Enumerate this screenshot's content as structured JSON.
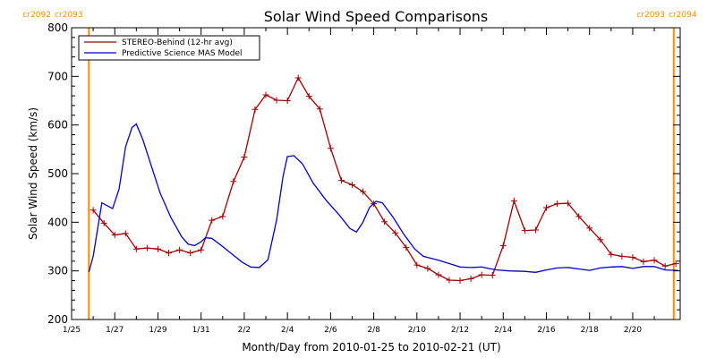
{
  "chart_data": {
    "type": "line",
    "title": "Solar Wind Speed Comparisons",
    "xlabel": "Month/Day from 2010-01-25 to 2010-02-21 (UT)",
    "ylabel": "Solar Wind Speed (km/s)",
    "x_range_days": [
      0,
      28.2
    ],
    "ylim": [
      200,
      800
    ],
    "y_ticks": [
      200,
      300,
      400,
      500,
      600,
      700,
      800
    ],
    "x_ticks": [
      {
        "d": 0,
        "label": "1/25"
      },
      {
        "d": 2,
        "label": "1/27"
      },
      {
        "d": 4,
        "label": "1/29"
      },
      {
        "d": 6,
        "label": "1/31"
      },
      {
        "d": 8,
        "label": "2/2"
      },
      {
        "d": 10,
        "label": "2/4"
      },
      {
        "d": 12,
        "label": "2/6"
      },
      {
        "d": 14,
        "label": "2/8"
      },
      {
        "d": 16,
        "label": "2/10"
      },
      {
        "d": 18,
        "label": "2/12"
      },
      {
        "d": 20,
        "label": "2/14"
      },
      {
        "d": 22,
        "label": "2/16"
      },
      {
        "d": 24,
        "label": "2/18"
      },
      {
        "d": 26,
        "label": "2/20"
      }
    ],
    "carrington": [
      {
        "d": 0.8,
        "left_label": "cr2092",
        "right_label": "cr2093",
        "side": "left"
      },
      {
        "d": 27.9,
        "left_label": "cr2093",
        "right_label": "cr2094",
        "side": "right"
      }
    ],
    "legend_position": "top-left",
    "series": [
      {
        "name": "STEREO-Behind (12-hr avg)",
        "color": "#a00000",
        "marker": "plus",
        "points": [
          [
            1.0,
            425
          ],
          [
            1.5,
            398
          ],
          [
            2.0,
            374
          ],
          [
            2.5,
            377
          ],
          [
            3.0,
            345
          ],
          [
            3.5,
            347
          ],
          [
            4.0,
            345
          ],
          [
            4.5,
            337
          ],
          [
            5.0,
            343
          ],
          [
            5.5,
            337
          ],
          [
            6.0,
            343
          ],
          [
            6.5,
            404
          ],
          [
            7.0,
            412
          ],
          [
            7.5,
            484
          ],
          [
            8.0,
            534
          ],
          [
            8.5,
            632
          ],
          [
            9.0,
            662
          ],
          [
            9.5,
            651
          ],
          [
            10.0,
            650
          ],
          [
            10.5,
            697
          ],
          [
            11.0,
            659
          ],
          [
            11.5,
            633
          ],
          [
            12.0,
            552
          ],
          [
            12.5,
            486
          ],
          [
            13.0,
            477
          ],
          [
            13.5,
            463
          ],
          [
            14.0,
            438
          ],
          [
            14.5,
            401
          ],
          [
            15.0,
            378
          ],
          [
            15.5,
            348
          ],
          [
            16.0,
            312
          ],
          [
            16.5,
            305
          ],
          [
            17.0,
            292
          ],
          [
            17.5,
            281
          ],
          [
            18.0,
            280
          ],
          [
            18.5,
            284
          ],
          [
            19.0,
            292
          ],
          [
            19.5,
            291
          ],
          [
            20.0,
            352
          ],
          [
            20.5,
            444
          ],
          [
            21.0,
            383
          ],
          [
            21.5,
            384
          ],
          [
            22.0,
            430
          ],
          [
            22.5,
            438
          ],
          [
            23.0,
            439
          ],
          [
            23.5,
            412
          ],
          [
            24.0,
            388
          ],
          [
            24.5,
            364
          ],
          [
            25.0,
            334
          ],
          [
            25.5,
            330
          ],
          [
            26.0,
            328
          ],
          [
            26.5,
            319
          ],
          [
            27.0,
            322
          ],
          [
            27.5,
            310
          ],
          [
            28.0,
            315
          ]
        ]
      },
      {
        "name": "Predictive Science MAS Model",
        "color": "#0000cc",
        "marker": "none",
        "points": [
          [
            0.8,
            298
          ],
          [
            1.0,
            330
          ],
          [
            1.4,
            440
          ],
          [
            1.9,
            428
          ],
          [
            2.2,
            468
          ],
          [
            2.5,
            555
          ],
          [
            2.8,
            595
          ],
          [
            3.0,
            602
          ],
          [
            3.3,
            570
          ],
          [
            3.7,
            515
          ],
          [
            4.1,
            460
          ],
          [
            4.6,
            410
          ],
          [
            5.1,
            370
          ],
          [
            5.4,
            355
          ],
          [
            5.7,
            352
          ],
          [
            6.0,
            360
          ],
          [
            6.2,
            368
          ],
          [
            6.5,
            367
          ],
          [
            7.0,
            350
          ],
          [
            7.5,
            332
          ],
          [
            7.9,
            318
          ],
          [
            8.3,
            308
          ],
          [
            8.7,
            307
          ],
          [
            9.1,
            323
          ],
          [
            9.5,
            405
          ],
          [
            9.8,
            495
          ],
          [
            10.0,
            535
          ],
          [
            10.3,
            537
          ],
          [
            10.7,
            520
          ],
          [
            11.2,
            480
          ],
          [
            11.8,
            445
          ],
          [
            12.4,
            415
          ],
          [
            12.9,
            387
          ],
          [
            13.2,
            380
          ],
          [
            13.5,
            400
          ],
          [
            13.8,
            430
          ],
          [
            14.1,
            443
          ],
          [
            14.4,
            440
          ],
          [
            14.9,
            410
          ],
          [
            15.4,
            375
          ],
          [
            15.9,
            345
          ],
          [
            16.3,
            330
          ],
          [
            17.0,
            322
          ],
          [
            17.5,
            315
          ],
          [
            18.0,
            308
          ],
          [
            18.5,
            307
          ],
          [
            19.0,
            308
          ],
          [
            19.3,
            305
          ],
          [
            19.7,
            302
          ],
          [
            20.3,
            300
          ],
          [
            21.0,
            299
          ],
          [
            21.5,
            297
          ],
          [
            22.0,
            302
          ],
          [
            22.5,
            306
          ],
          [
            23.0,
            307
          ],
          [
            23.5,
            304
          ],
          [
            24.0,
            301
          ],
          [
            24.5,
            306
          ],
          [
            25.0,
            308
          ],
          [
            25.5,
            309
          ],
          [
            26.0,
            305
          ],
          [
            26.5,
            309
          ],
          [
            27.0,
            309
          ],
          [
            27.5,
            302
          ],
          [
            28.1,
            301
          ]
        ]
      }
    ]
  }
}
